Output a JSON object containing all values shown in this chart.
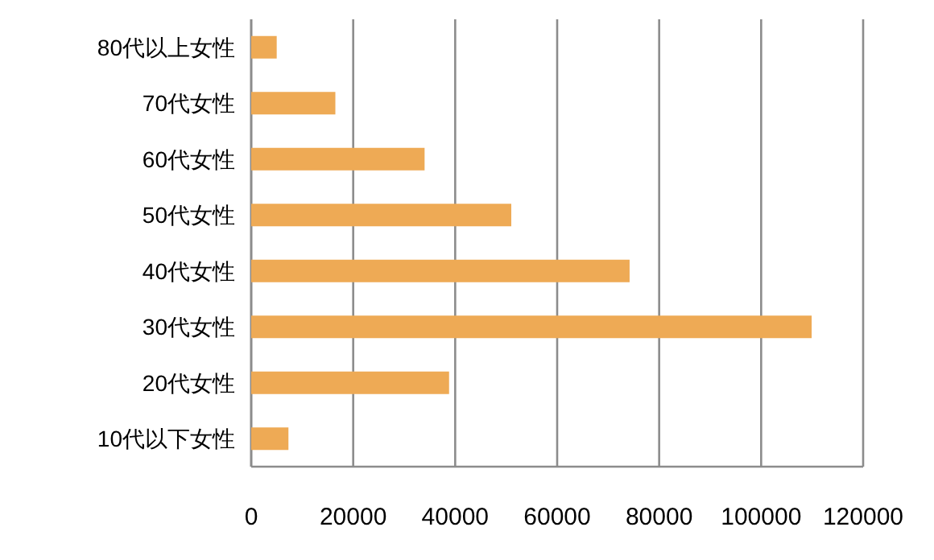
{
  "chart_data": {
    "type": "bar",
    "orientation": "horizontal",
    "categories": [
      "80代以上女性",
      "70代女性",
      "60代女性",
      "50代女性",
      "40代女性",
      "30代女性",
      "20代女性",
      "10代以下女性"
    ],
    "values": [
      5000,
      16500,
      34000,
      51000,
      74200,
      109900,
      38800,
      7300
    ],
    "color": "#eeaa55",
    "xlim": [
      0,
      120000
    ],
    "xticks": [
      0,
      20000,
      40000,
      60000,
      80000,
      100000,
      120000
    ],
    "grid": "x"
  }
}
